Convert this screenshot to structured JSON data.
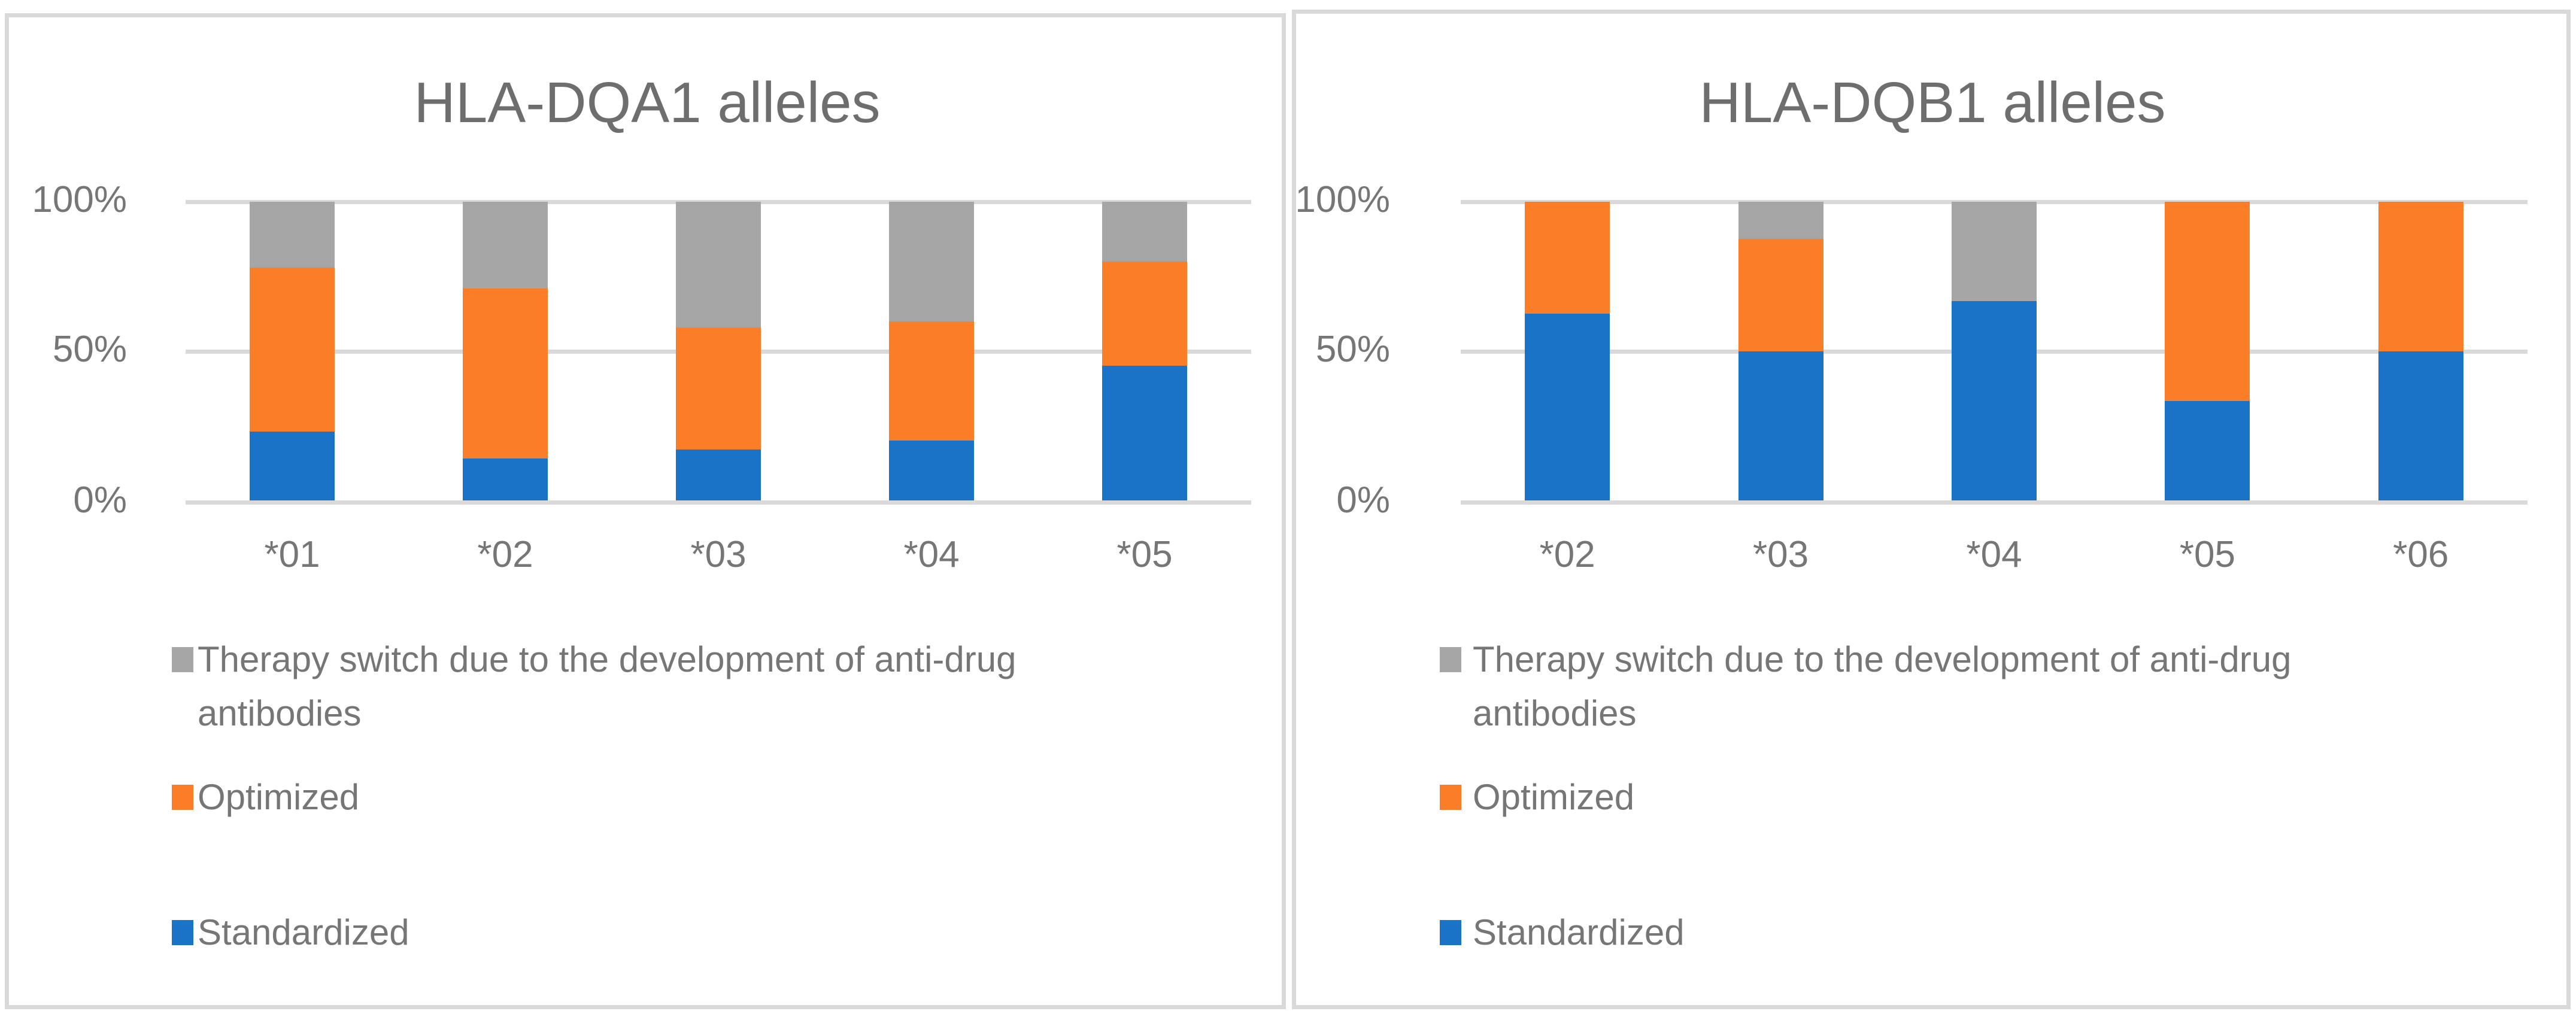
{
  "figure": {
    "background": "#ffffff",
    "panel_border_color": "#d9d9d9",
    "gridline_color": "#d9d9d9",
    "text_color": "#767676",
    "title_color": "#6e6e6e"
  },
  "colors": {
    "blue": "#1b73c8",
    "orange": "#fb7d28",
    "gray": "#a6a6a6"
  },
  "chart_data": [
    {
      "type": "bar",
      "stacked": true,
      "title": "HLA-DQA1 alleles",
      "categories": [
        "*01",
        "*02",
        "*03",
        "*04",
        "*05"
      ],
      "series": [
        {
          "name": "Standardized",
          "color_key": "blue",
          "values": [
            23,
            14,
            17,
            20,
            45
          ]
        },
        {
          "name": "Optimized",
          "color_key": "orange",
          "values": [
            55,
            57,
            41,
            40,
            35
          ]
        },
        {
          "name": "Therapy switch due to the development of anti-drug antibodies",
          "color_key": "gray",
          "values": [
            22,
            29,
            42,
            40,
            20
          ]
        }
      ],
      "y_ticks": [
        "0%",
        "50%",
        "100%"
      ],
      "ylim": [
        0,
        100
      ],
      "grid": true,
      "legend_position": "bottom-left"
    },
    {
      "type": "bar",
      "stacked": true,
      "title": "HLA-DQB1 alleles",
      "categories": [
        "*02",
        "*03",
        "*04",
        "*05",
        "*06"
      ],
      "series": [
        {
          "name": "Standardized",
          "color_key": "blue",
          "values": [
            62.5,
            50,
            66.7,
            33.3,
            50
          ]
        },
        {
          "name": "Optimized",
          "color_key": "orange",
          "values": [
            37.5,
            37.5,
            0,
            66.7,
            50
          ]
        },
        {
          "name": "Therapy switch due to the development of anti-drug antibodies",
          "color_key": "gray",
          "values": [
            0,
            12.5,
            33.3,
            0,
            0
          ]
        }
      ],
      "y_ticks": [
        "0%",
        "50%",
        "100%"
      ],
      "ylim": [
        0,
        100
      ],
      "grid": true,
      "legend_position": "bottom-left"
    }
  ],
  "legend": {
    "entries": [
      {
        "color_key": "gray",
        "lines": [
          "Therapy switch due to the development of anti-drug",
          "antibodies"
        ]
      },
      {
        "color_key": "orange",
        "lines": [
          "Optimized"
        ]
      },
      {
        "color_key": "blue",
        "lines": [
          "Standardized"
        ]
      }
    ]
  }
}
